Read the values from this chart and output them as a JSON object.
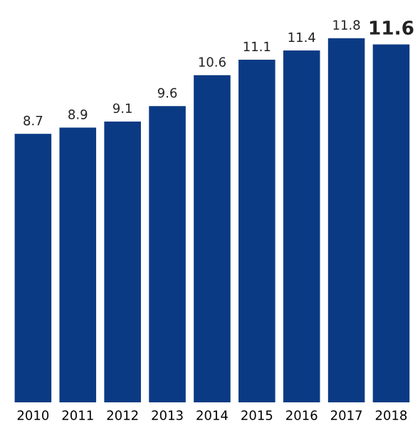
{
  "chart_data": {
    "type": "bar",
    "categories": [
      "2010",
      "2011",
      "2012",
      "2013",
      "2014",
      "2015",
      "2016",
      "2017",
      "2018"
    ],
    "values": [
      8.7,
      8.9,
      9.1,
      9.6,
      10.6,
      11.1,
      11.4,
      11.8,
      11.6
    ],
    "color": "#0b3a84",
    "data_labels": true,
    "grid": false,
    "legend": false
  }
}
